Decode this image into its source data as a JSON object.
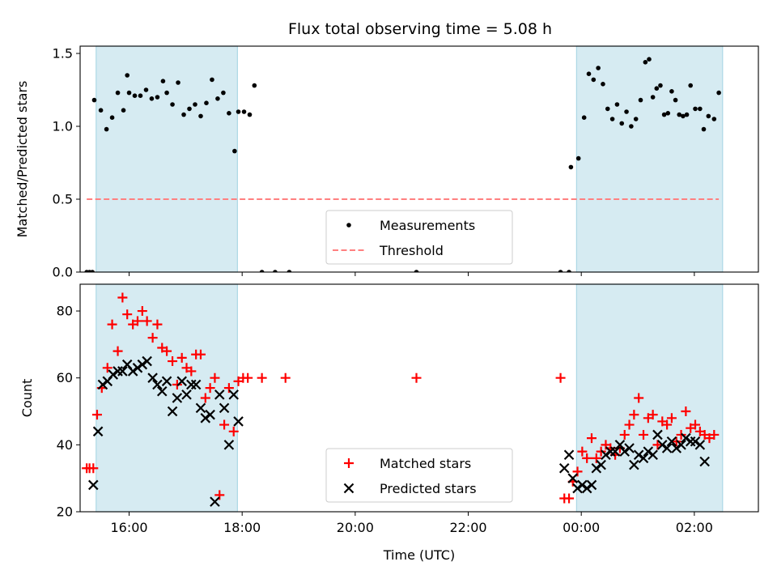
{
  "chart_data": [
    {
      "type": "scatter",
      "title": "Flux total observing time = 5.08 h",
      "xlabel": "",
      "ylabel": "Matched/Predicted stars",
      "ylim": [
        0,
        1.55
      ],
      "yticks": [
        "0.0",
        "0.5",
        "1.0",
        "1.5"
      ],
      "xlim": [
        "15:08",
        "03:08"
      ],
      "legend_position": "lower-center",
      "shaded_intervals": [
        [
          "15:25",
          "17:55"
        ],
        [
          "23:55",
          "02:30"
        ]
      ],
      "shade_color": "#add8e6",
      "series": [
        {
          "name": "Measurements",
          "color": "#000000",
          "marker": "dot",
          "points": [
            [
              "15:15",
              0
            ],
            [
              "15:18",
              0
            ],
            [
              "15:21",
              0
            ],
            [
              "15:23",
              1.18
            ],
            [
              "15:30",
              1.11
            ],
            [
              "15:36",
              0.98
            ],
            [
              "15:42",
              1.06
            ],
            [
              "15:48",
              1.23
            ],
            [
              "15:54",
              1.11
            ],
            [
              "15:58",
              1.35
            ],
            [
              "16:00",
              1.23
            ],
            [
              "16:06",
              1.21
            ],
            [
              "16:12",
              1.21
            ],
            [
              "16:18",
              1.25
            ],
            [
              "16:24",
              1.19
            ],
            [
              "16:30",
              1.2
            ],
            [
              "16:36",
              1.31
            ],
            [
              "16:40",
              1.23
            ],
            [
              "16:46",
              1.15
            ],
            [
              "16:52",
              1.3
            ],
            [
              "16:58",
              1.08
            ],
            [
              "17:04",
              1.12
            ],
            [
              "17:10",
              1.15
            ],
            [
              "17:16",
              1.07
            ],
            [
              "17:22",
              1.16
            ],
            [
              "17:28",
              1.32
            ],
            [
              "17:34",
              1.19
            ],
            [
              "17:40",
              1.23
            ],
            [
              "17:46",
              1.09
            ],
            [
              "17:52",
              0.83
            ],
            [
              "17:56",
              1.1
            ],
            [
              "18:02",
              1.1
            ],
            [
              "18:08",
              1.08
            ],
            [
              "18:13",
              1.28
            ],
            [
              "18:21",
              0
            ],
            [
              "18:35",
              0
            ],
            [
              "18:50",
              0
            ],
            [
              "21:05",
              0
            ],
            [
              "23:38",
              0
            ],
            [
              "23:47",
              0
            ],
            [
              "23:49",
              0.72
            ],
            [
              "23:57",
              0.78
            ],
            [
              "00:03",
              1.06
            ],
            [
              "00:08",
              1.36
            ],
            [
              "00:13",
              1.32
            ],
            [
              "00:18",
              1.4
            ],
            [
              "00:23",
              1.29
            ],
            [
              "00:28",
              1.12
            ],
            [
              "00:33",
              1.05
            ],
            [
              "00:38",
              1.15
            ],
            [
              "00:43",
              1.02
            ],
            [
              "00:48",
              1.1
            ],
            [
              "00:53",
              1.0
            ],
            [
              "00:58",
              1.05
            ],
            [
              "01:03",
              1.18
            ],
            [
              "01:08",
              1.44
            ],
            [
              "01:12",
              1.46
            ],
            [
              "01:16",
              1.2
            ],
            [
              "01:20",
              1.26
            ],
            [
              "01:24",
              1.28
            ],
            [
              "01:28",
              1.08
            ],
            [
              "01:32",
              1.09
            ],
            [
              "01:36",
              1.24
            ],
            [
              "01:40",
              1.18
            ],
            [
              "01:44",
              1.08
            ],
            [
              "01:48",
              1.07
            ],
            [
              "01:52",
              1.08
            ],
            [
              "01:56",
              1.28
            ],
            [
              "02:01",
              1.12
            ],
            [
              "02:06",
              1.12
            ],
            [
              "02:10",
              0.98
            ],
            [
              "02:15",
              1.07
            ],
            [
              "02:21",
              1.05
            ],
            [
              "02:26",
              1.23
            ]
          ]
        },
        {
          "name": "Threshold",
          "color": "#ff8080",
          "style": "dashed",
          "points": [
            [
              "15:15",
              0.5
            ],
            [
              "02:26",
              0.5
            ]
          ]
        }
      ]
    },
    {
      "type": "scatter",
      "xlabel": "Time (UTC)",
      "ylabel": "Count",
      "ylim": [
        20,
        88
      ],
      "yticks": [
        "20",
        "40",
        "60",
        "80"
      ],
      "xlim": [
        "15:08",
        "03:08"
      ],
      "xticks": [
        "16:00",
        "18:00",
        "20:00",
        "22:00",
        "00:00",
        "02:00"
      ],
      "legend_position": "lower-center",
      "shaded_intervals": [
        [
          "15:25",
          "17:55"
        ],
        [
          "23:55",
          "02:30"
        ]
      ],
      "shade_color": "#add8e6",
      "series": [
        {
          "name": "Matched stars",
          "color": "#ff0000",
          "marker": "plus",
          "points": [
            [
              "15:15",
              33
            ],
            [
              "15:18",
              33
            ],
            [
              "15:22",
              33
            ],
            [
              "15:26",
              49
            ],
            [
              "15:31",
              57
            ],
            [
              "15:37",
              63
            ],
            [
              "15:42",
              76
            ],
            [
              "15:48",
              68
            ],
            [
              "15:53",
              84
            ],
            [
              "15:58",
              79
            ],
            [
              "16:04",
              76
            ],
            [
              "16:09",
              77
            ],
            [
              "16:14",
              80
            ],
            [
              "16:19",
              77
            ],
            [
              "16:25",
              72
            ],
            [
              "16:30",
              76
            ],
            [
              "16:35",
              69
            ],
            [
              "16:40",
              68
            ],
            [
              "16:46",
              65
            ],
            [
              "16:51",
              58
            ],
            [
              "16:56",
              66
            ],
            [
              "17:01",
              63
            ],
            [
              "17:06",
              62
            ],
            [
              "17:11",
              67
            ],
            [
              "17:16",
              67
            ],
            [
              "17:21",
              54
            ],
            [
              "17:26",
              57
            ],
            [
              "17:31",
              60
            ],
            [
              "17:36",
              25
            ],
            [
              "17:41",
              46
            ],
            [
              "17:46",
              57
            ],
            [
              "17:51",
              44
            ],
            [
              "17:56",
              59
            ],
            [
              "18:01",
              60
            ],
            [
              "18:06",
              60
            ],
            [
              "18:21",
              60
            ],
            [
              "18:46",
              60
            ],
            [
              "21:05",
              60
            ],
            [
              "23:38",
              60
            ],
            [
              "23:42",
              24
            ],
            [
              "23:47",
              24
            ],
            [
              "23:51",
              29
            ],
            [
              "23:56",
              32
            ],
            [
              "24:01",
              38
            ],
            [
              "24:06",
              36
            ],
            [
              "24:11",
              42
            ],
            [
              "24:16",
              36
            ],
            [
              "24:21",
              38
            ],
            [
              "24:26",
              40
            ],
            [
              "24:31",
              39
            ],
            [
              "24:36",
              37
            ],
            [
              "24:41",
              39
            ],
            [
              "24:46",
              43
            ],
            [
              "24:51",
              46
            ],
            [
              "24:56",
              49
            ],
            [
              "25:01",
              54
            ],
            [
              "25:06",
              43
            ],
            [
              "25:11",
              48
            ],
            [
              "25:16",
              49
            ],
            [
              "25:21",
              40
            ],
            [
              "25:26",
              47
            ],
            [
              "25:31",
              46
            ],
            [
              "25:36",
              48
            ],
            [
              "25:41",
              41
            ],
            [
              "25:46",
              43
            ],
            [
              "25:51",
              50
            ],
            [
              "25:56",
              45
            ],
            [
              "26:01",
              46
            ],
            [
              "26:06",
              44
            ],
            [
              "26:11",
              43
            ],
            [
              "26:16",
              42
            ],
            [
              "26:21",
              43
            ]
          ]
        },
        {
          "name": "Predicted stars",
          "color": "#000000",
          "marker": "x",
          "points": [
            [
              "15:22",
              28
            ],
            [
              "15:27",
              44
            ],
            [
              "15:32",
              58
            ],
            [
              "15:37",
              59
            ],
            [
              "15:43",
              61
            ],
            [
              "15:48",
              62
            ],
            [
              "15:53",
              62
            ],
            [
              "15:58",
              64
            ],
            [
              "16:04",
              62
            ],
            [
              "16:09",
              63
            ],
            [
              "16:14",
              64
            ],
            [
              "16:19",
              65
            ],
            [
              "16:25",
              60
            ],
            [
              "16:30",
              58
            ],
            [
              "16:35",
              56
            ],
            [
              "16:40",
              59
            ],
            [
              "16:46",
              50
            ],
            [
              "16:51",
              54
            ],
            [
              "16:56",
              59
            ],
            [
              "17:01",
              55
            ],
            [
              "17:06",
              58
            ],
            [
              "17:11",
              58
            ],
            [
              "17:16",
              51
            ],
            [
              "17:21",
              48
            ],
            [
              "17:26",
              49
            ],
            [
              "17:31",
              23
            ],
            [
              "17:36",
              55
            ],
            [
              "17:41",
              51
            ],
            [
              "17:46",
              40
            ],
            [
              "17:51",
              55
            ],
            [
              "17:56",
              47
            ],
            [
              "23:42",
              33
            ],
            [
              "23:47",
              37
            ],
            [
              "23:51",
              30
            ],
            [
              "23:56",
              27
            ],
            [
              "24:01",
              28
            ],
            [
              "24:06",
              27
            ],
            [
              "24:11",
              28
            ],
            [
              "24:16",
              33
            ],
            [
              "24:21",
              34
            ],
            [
              "24:26",
              37
            ],
            [
              "24:31",
              38
            ],
            [
              "24:36",
              38
            ],
            [
              "24:41",
              40
            ],
            [
              "24:46",
              38
            ],
            [
              "24:51",
              39
            ],
            [
              "24:56",
              34
            ],
            [
              "25:01",
              37
            ],
            [
              "25:06",
              36
            ],
            [
              "25:11",
              38
            ],
            [
              "25:16",
              37
            ],
            [
              "25:21",
              43
            ],
            [
              "25:26",
              40
            ],
            [
              "25:31",
              39
            ],
            [
              "25:36",
              41
            ],
            [
              "25:41",
              39
            ],
            [
              "25:46",
              40
            ],
            [
              "25:51",
              42
            ],
            [
              "25:56",
              41
            ],
            [
              "26:01",
              41
            ],
            [
              "26:06",
              40
            ],
            [
              "26:11",
              35
            ]
          ]
        }
      ]
    }
  ]
}
